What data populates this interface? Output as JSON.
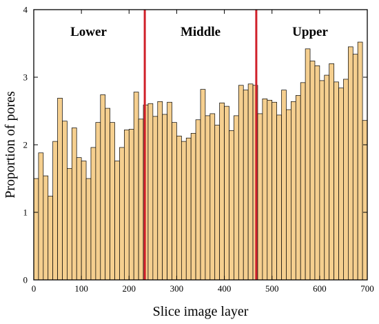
{
  "chart_data": {
    "type": "bar",
    "xlabel": "Slice image layer",
    "ylabel": "Proportion of pores",
    "xlim": [
      0,
      700
    ],
    "ylim": [
      0,
      4
    ],
    "xticks": [
      0,
      100,
      200,
      300,
      400,
      500,
      600,
      700
    ],
    "yticks": [
      0,
      1,
      2,
      3,
      4
    ],
    "grid": false,
    "bar_color": "#f5cf8f",
    "bar_edge_color": "#000000",
    "divider_color": "#d0202a",
    "dividers": [
      233,
      467
    ],
    "regions": [
      {
        "label": "Lower",
        "center": 115
      },
      {
        "label": "Middle",
        "center": 350
      },
      {
        "label": "Upper",
        "center": 580
      }
    ],
    "bin_width": 10,
    "x": [
      0,
      10,
      20,
      30,
      40,
      50,
      60,
      70,
      80,
      90,
      100,
      110,
      120,
      130,
      140,
      150,
      160,
      170,
      180,
      190,
      200,
      210,
      220,
      230,
      240,
      250,
      260,
      270,
      280,
      290,
      300,
      310,
      320,
      330,
      340,
      350,
      360,
      370,
      380,
      390,
      400,
      410,
      420,
      430,
      440,
      450,
      460,
      470,
      480,
      490,
      500,
      510,
      520,
      530,
      540,
      550,
      560,
      570,
      580,
      590,
      600,
      610,
      620,
      630,
      640,
      650,
      660,
      670,
      680,
      690
    ],
    "values": [
      1.5,
      1.88,
      1.54,
      1.24,
      2.05,
      2.69,
      2.35,
      1.65,
      2.25,
      1.81,
      1.76,
      1.5,
      1.96,
      2.33,
      2.74,
      2.54,
      2.33,
      1.76,
      1.96,
      2.22,
      2.23,
      2.78,
      2.38,
      2.59,
      2.61,
      2.42,
      2.64,
      2.45,
      2.63,
      2.33,
      2.13,
      2.05,
      2.1,
      2.17,
      2.37,
      2.82,
      2.43,
      2.46,
      2.29,
      2.62,
      2.57,
      2.21,
      2.43,
      2.88,
      2.81,
      2.9,
      2.88,
      2.46,
      2.68,
      2.66,
      2.63,
      2.44,
      2.81,
      2.52,
      2.64,
      2.73,
      2.92,
      3.42,
      3.24,
      3.17,
      2.95,
      3.03,
      3.2,
      2.93,
      2.84,
      2.97,
      3.45,
      3.34,
      3.52,
      2.36
    ]
  }
}
